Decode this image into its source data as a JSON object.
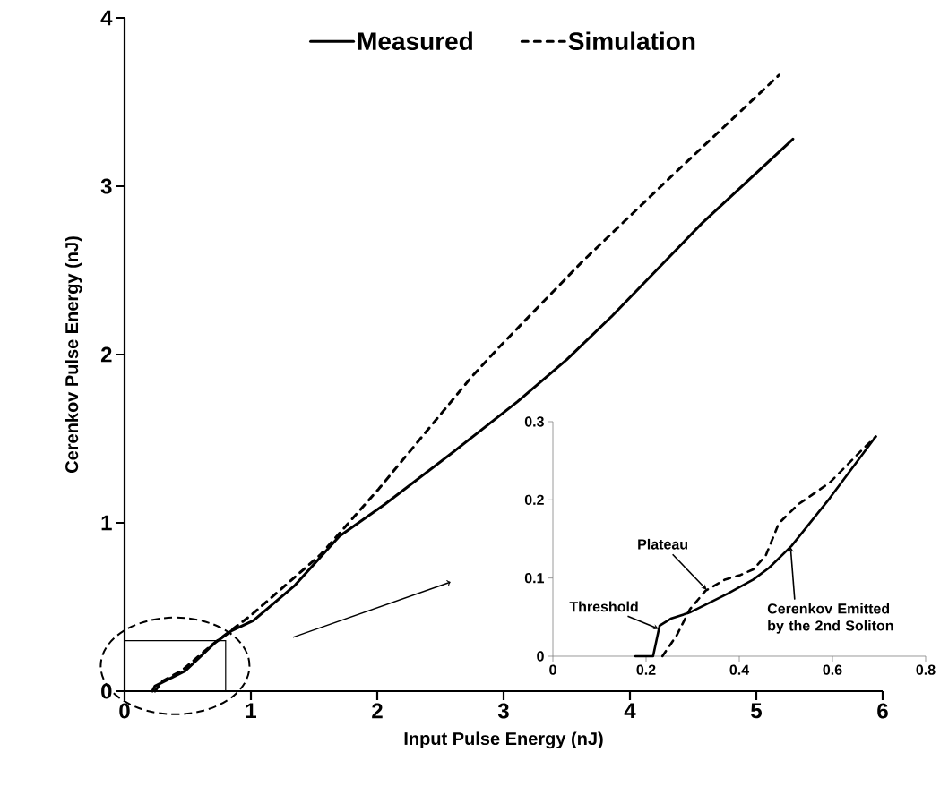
{
  "chart_data": [
    {
      "type": "line",
      "xlabel": "Input Pulse Energy (nJ)",
      "ylabel": "Cerenkov Pulse Energy (nJ)",
      "xlim": [
        0,
        6
      ],
      "ylim": [
        0,
        4
      ],
      "xticks": [
        0,
        1,
        2,
        3,
        4,
        5,
        6
      ],
      "yticks": [
        0,
        1,
        2,
        3,
        4
      ],
      "legend": "top",
      "series": [
        {
          "name": "Measured",
          "color": "#000000",
          "line_style": "solid",
          "x": [
            0.22,
            0.24,
            0.48,
            0.72,
            0.85,
            1.02,
            1.35,
            1.7,
            2.06,
            2.6,
            3.11,
            3.5,
            3.86,
            4.57,
            5.29
          ],
          "values": [
            0,
            0.03,
            0.12,
            0.29,
            0.36,
            0.42,
            0.63,
            0.92,
            1.11,
            1.42,
            1.72,
            1.97,
            2.23,
            2.78,
            3.28
          ]
        },
        {
          "name": "Simulation",
          "color": "#000000",
          "line_style": "dashed",
          "x": [
            0.24,
            0.3,
            0.45,
            0.7,
            1.0,
            1.55,
            2.01,
            2.75,
            2.96,
            3.62,
            4.33,
            5.18
          ],
          "values": [
            0,
            0.06,
            0.12,
            0.28,
            0.45,
            0.81,
            1.2,
            1.87,
            2.04,
            2.55,
            3.06,
            3.66
          ]
        }
      ]
    },
    {
      "type": "line",
      "xlim": [
        0,
        0.8
      ],
      "ylim": [
        0,
        0.3
      ],
      "xticks": [
        0,
        0.2,
        0.4,
        0.6,
        0.8
      ],
      "yticks": [
        0,
        0.1,
        0.2,
        0.3
      ],
      "series": [
        {
          "color": "#000000",
          "line_style": "solid",
          "x": [
            0.177,
            0.215,
            0.229,
            0.253,
            0.294,
            0.375,
            0.43,
            0.464,
            0.512,
            0.594,
            0.693
          ],
          "values": [
            0,
            0,
            0.039,
            0.048,
            0.056,
            0.08,
            0.098,
            0.113,
            0.141,
            0.202,
            0.281
          ]
        },
        {
          "color": "#000000",
          "line_style": "dashed",
          "x": [
            0.235,
            0.266,
            0.294,
            0.328,
            0.369,
            0.403,
            0.43,
            0.457,
            0.485,
            0.526,
            0.594,
            0.662,
            0.693
          ],
          "values": [
            0,
            0.027,
            0.06,
            0.084,
            0.098,
            0.104,
            0.111,
            0.129,
            0.17,
            0.194,
            0.222,
            0.263,
            0.281
          ]
        }
      ],
      "annotations": [
        {
          "text": "Threshold",
          "x": 0.227,
          "y": 0.035
        },
        {
          "text": "Plateau",
          "x": 0.33,
          "y": 0.085
        },
        {
          "text": "Cerenkov Emitted by the 2nd Soliton",
          "x": 0.51,
          "y": 0.14
        }
      ]
    }
  ]
}
